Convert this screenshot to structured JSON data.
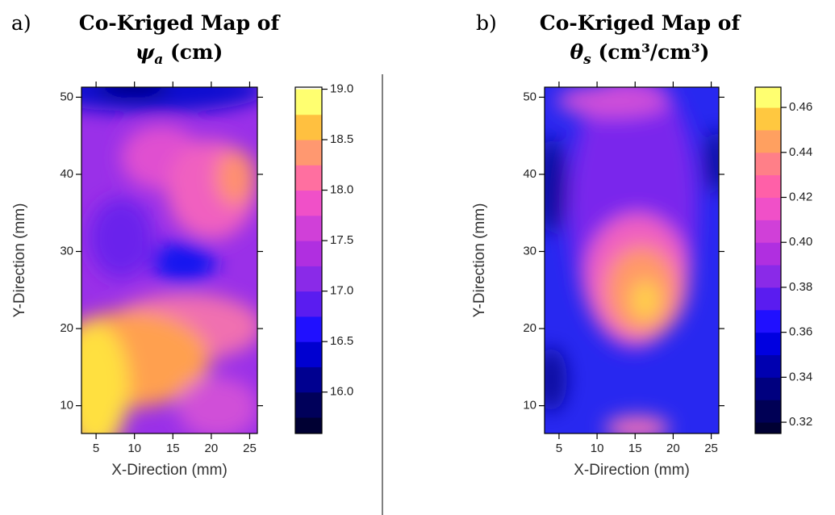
{
  "chart_data": [
    {
      "type": "contour",
      "panel_label": "a)",
      "title": {
        "line1": "Co-Kriged Map of",
        "symbol": "ψ",
        "subscript": "a",
        "unit": "(cm)"
      },
      "xlabel": "X-Direction (mm)",
      "ylabel": "Y-Direction (mm)",
      "xlim": [
        3.1,
        26.0
      ],
      "ylim": [
        6.4,
        51.3
      ],
      "xticks": [
        5,
        10,
        15,
        20,
        25
      ],
      "yticks": [
        10,
        20,
        30,
        40,
        50
      ],
      "colorbar": {
        "lim": [
          15.59,
          19.02
        ],
        "ticks": [
          {
            "value": 16,
            "label": "16.0"
          },
          16.5,
          {
            "value": 17,
            "label": "17.0"
          },
          17.5,
          {
            "value": 18,
            "label": "18.0"
          },
          18.5,
          {
            "value": 19,
            "label": "19.0"
          }
        ],
        "levels": [
          15.5,
          15.75,
          16,
          16.25,
          16.5,
          16.75,
          17,
          17.25,
          17.5,
          17.75,
          18,
          18.25,
          18.5,
          18.75,
          19
        ],
        "colors": [
          "#000033",
          "#00005a",
          "#000090",
          "#0000d0",
          "#2010ff",
          "#5a1cf0",
          "#8a2ae8",
          "#b02fe0",
          "#d040d8",
          "#f050c8",
          "#ff6fa0",
          "#ff9870",
          "#ffc040",
          "#ffff70"
        ]
      }
    },
    {
      "type": "contour",
      "panel_label": "b)",
      "title": {
        "line1": "Co-Kriged Map of",
        "symbol": "θ",
        "subscript": "s",
        "unit": "(cm³/cm³)"
      },
      "xlabel": "X-Direction (mm)",
      "ylabel": "Y-Direction (mm)",
      "xlim": [
        3.1,
        26.0
      ],
      "ylim": [
        6.4,
        51.3
      ],
      "xticks": [
        5,
        10,
        15,
        20,
        25
      ],
      "yticks": [
        10,
        20,
        30,
        40,
        50
      ],
      "colorbar": {
        "lim": [
          0.315,
          0.469
        ],
        "ticks": [
          0.32,
          0.34,
          0.36,
          {
            "value": 0.38,
            "label": "0.38"
          },
          {
            "value": 0.4,
            "label": "0.40"
          },
          0.42,
          0.44,
          0.46
        ],
        "levels": [
          0.31,
          0.32,
          0.33,
          0.34,
          0.35,
          0.36,
          0.37,
          0.38,
          0.39,
          0.4,
          0.41,
          0.42,
          0.43,
          0.44,
          0.45,
          0.46,
          0.47
        ],
        "colors": [
          "#000033",
          "#000055",
          "#00007f",
          "#0000b0",
          "#0000e0",
          "#2010ff",
          "#5a1cf0",
          "#8a2ae8",
          "#b02fe0",
          "#d040d8",
          "#f050c8",
          "#ff60a8",
          "#ff7f88",
          "#ffa060",
          "#ffc840",
          "#ffff70"
        ]
      }
    }
  ]
}
